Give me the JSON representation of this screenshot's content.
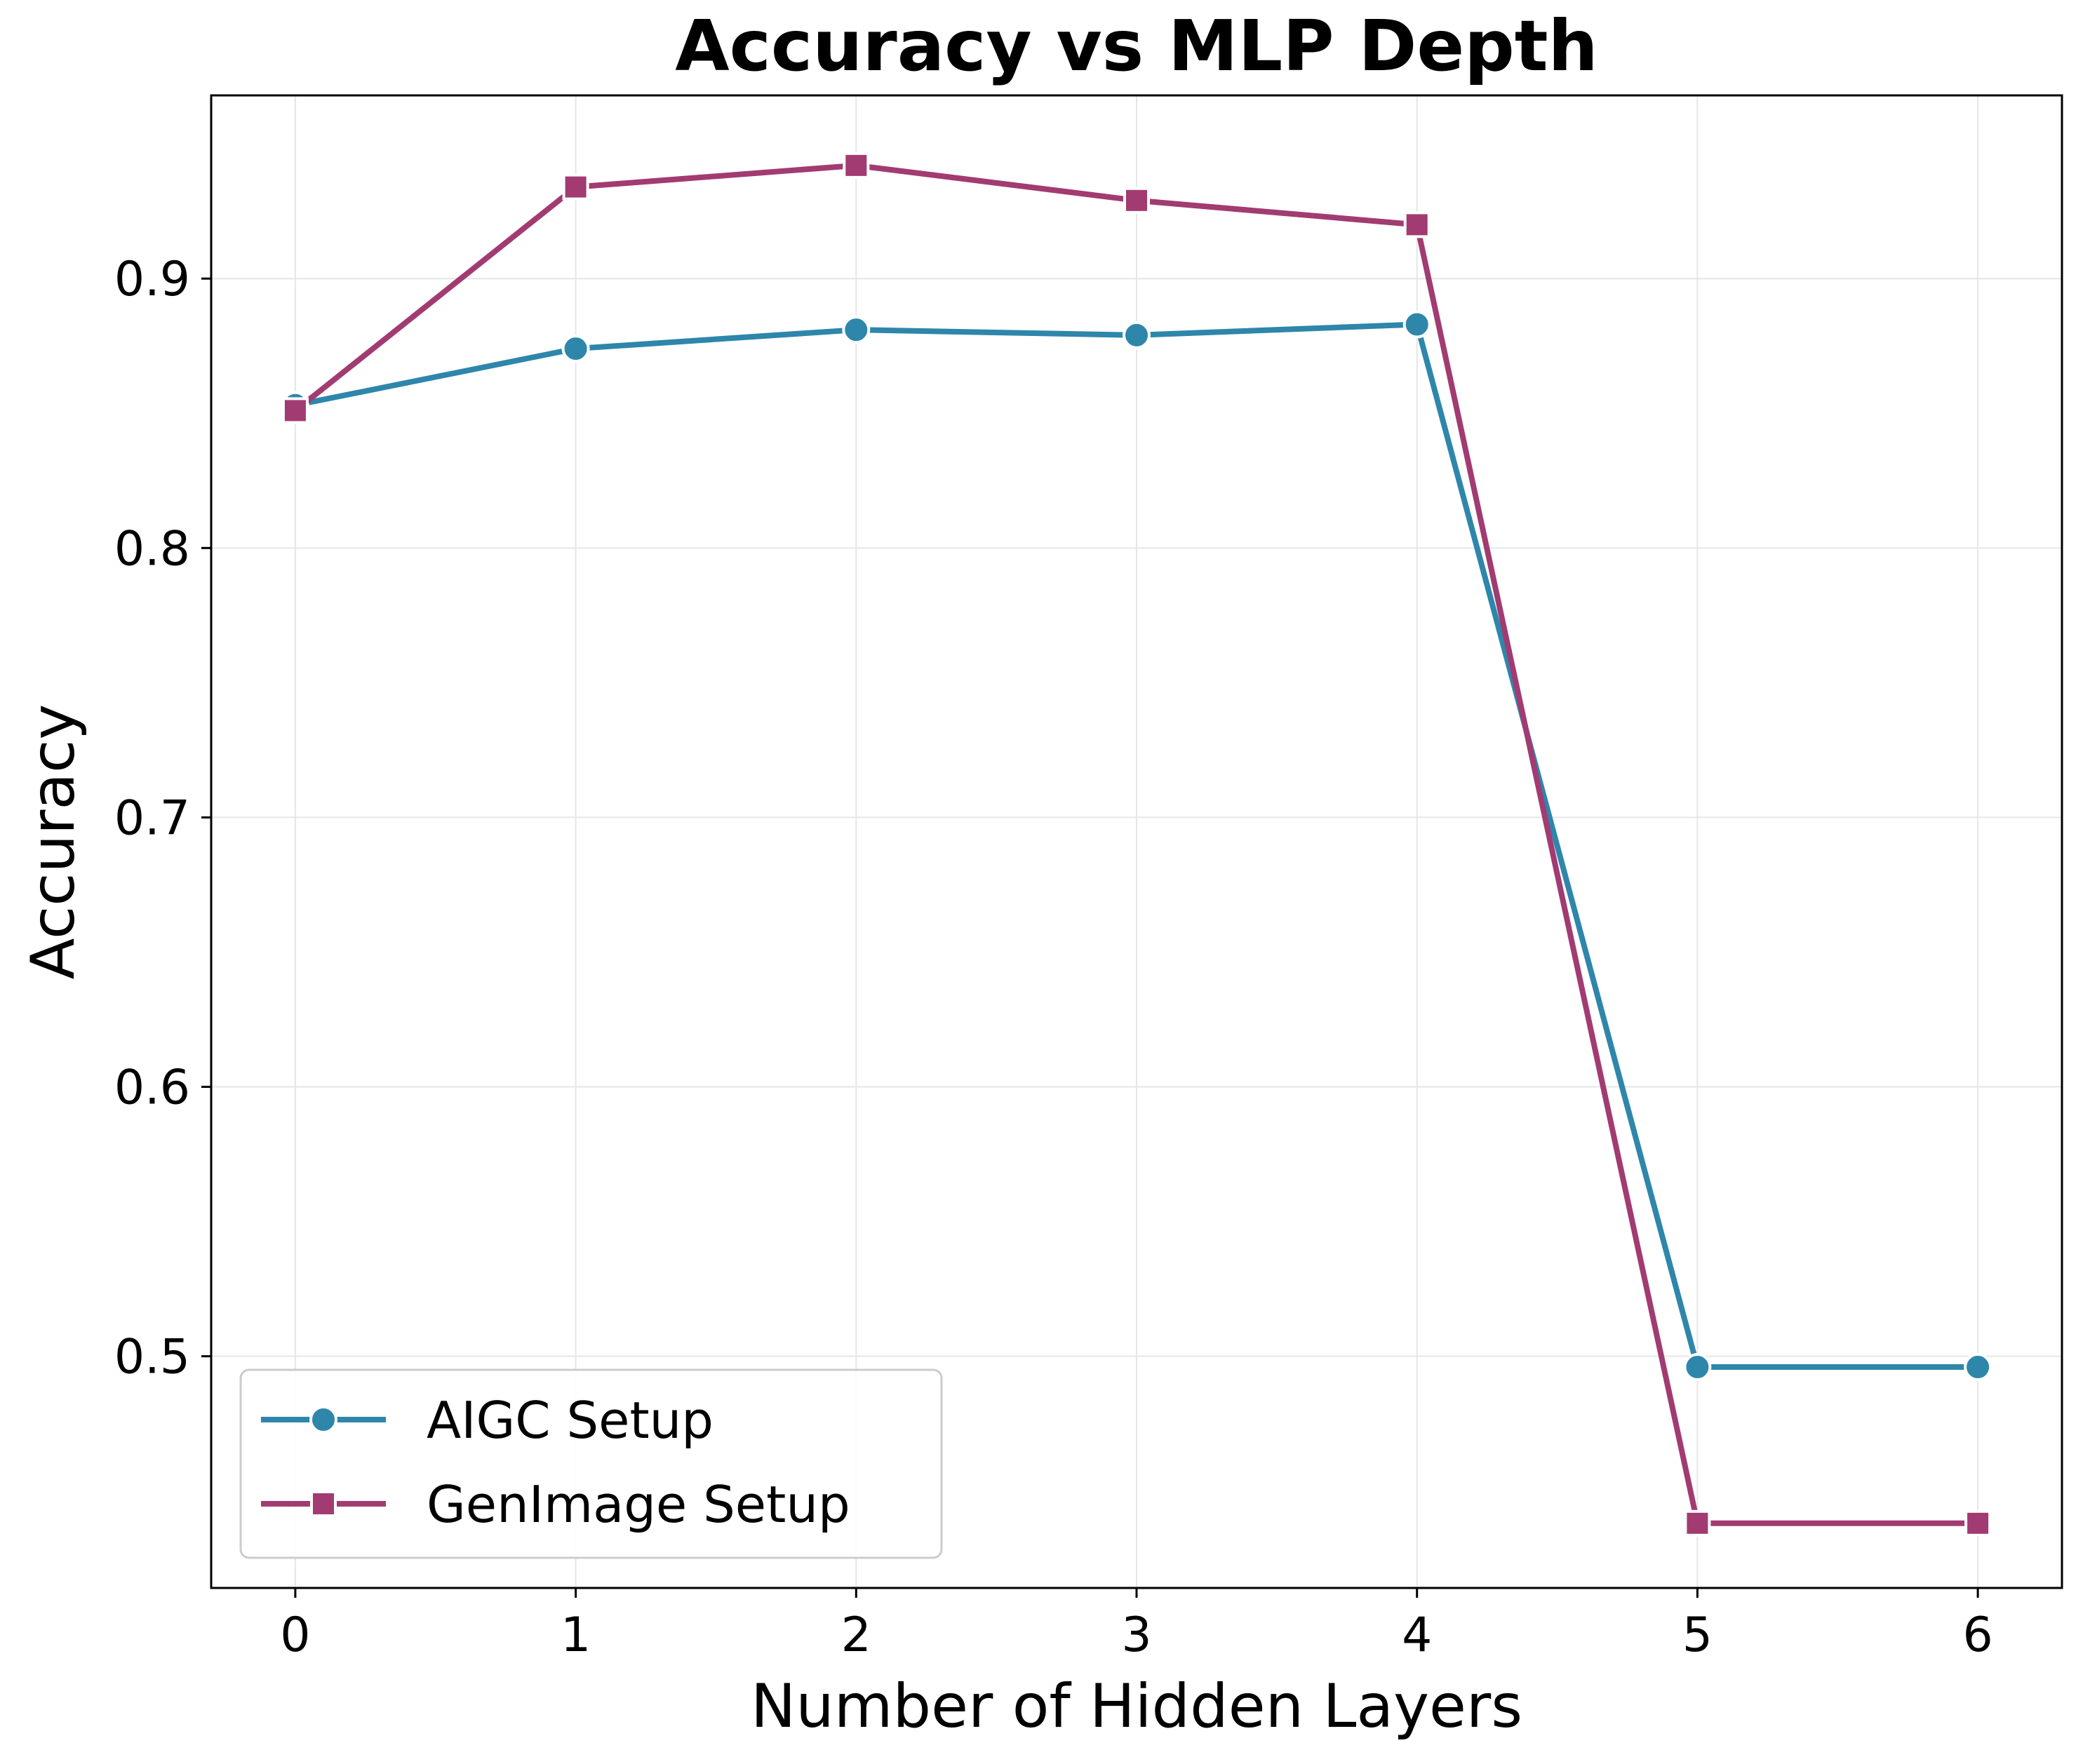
{
  "chart_data": {
    "type": "line",
    "title": "Accuracy vs MLP Depth",
    "xlabel": "Number of Hidden Layers",
    "ylabel": "Accuracy",
    "x": [
      0,
      1,
      2,
      3,
      4,
      5,
      6
    ],
    "xlim": [
      -0.3,
      6.3
    ],
    "ylim": [
      0.414,
      0.968
    ],
    "xticks": [
      "0",
      "1",
      "2",
      "3",
      "4",
      "5",
      "6"
    ],
    "yticks": [
      "0.5",
      "0.6",
      "0.7",
      "0.8",
      "0.9"
    ],
    "ytick_values": [
      0.5,
      0.6,
      0.7,
      0.8,
      0.9
    ],
    "grid": true,
    "legend_position": "lower-left",
    "series": [
      {
        "name": "AIGC Setup",
        "color": "#2e86ab",
        "marker": "circle",
        "values": [
          0.853,
          0.874,
          0.881,
          0.879,
          0.883,
          0.496,
          0.496
        ]
      },
      {
        "name": "GenImage Setup",
        "color": "#a23b72",
        "marker": "square",
        "values": [
          0.851,
          0.934,
          0.942,
          0.929,
          0.92,
          0.438,
          0.438
        ]
      }
    ]
  }
}
